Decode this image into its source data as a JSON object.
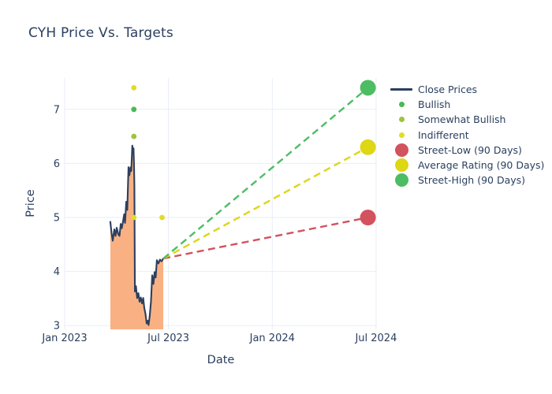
{
  "title": "CYH Price Vs. Targets",
  "colors": {
    "title_text": "#2a3f5f",
    "axis_text": "#2a3f5f",
    "grid": "#e8edf5",
    "background": "#ffffff",
    "close_line": "#2c3f5e",
    "area_fill": "#f9b183",
    "bullish": "#4bb857",
    "somewhat_bullish": "#9ec43a",
    "indifferent": "#e1dc26",
    "street_low": "#d2525e",
    "average_rating": "#ddd714",
    "street_high": "#4dbd63"
  },
  "chart_data": {
    "type": "line",
    "title": "CYH Price Vs. Targets",
    "xlabel": "Date",
    "ylabel": "Price",
    "x_tick_labels": [
      "Jan 2023",
      "Jul 2023",
      "Jan 2024",
      "Jul 2024"
    ],
    "x_tick_months": [
      0,
      6,
      12,
      18
    ],
    "y_ticks": [
      3,
      4,
      5,
      6,
      7
    ],
    "x_range_months": [
      0,
      18.05
    ],
    "y_range": [
      2.93,
      7.58
    ],
    "grid": true,
    "legend_position": "right",
    "series": [
      {
        "name": "Close Prices",
        "type": "line",
        "color": "#2c3f5e",
        "fill_color": "#f9b183",
        "x": [
          2.64,
          2.71,
          2.78,
          2.87,
          2.94,
          3.01,
          3.1,
          3.17,
          3.24,
          3.3,
          3.37,
          3.44,
          3.49,
          3.56,
          3.62,
          3.69,
          3.74,
          3.81,
          3.85,
          3.91,
          3.95,
          3.98,
          4.01,
          4.03,
          4.06,
          4.12,
          4.19,
          4.26,
          4.33,
          4.4,
          4.47,
          4.54,
          4.6,
          4.67,
          4.74,
          4.81,
          4.85,
          4.92,
          4.99,
          5.06,
          5.13,
          5.2,
          5.26,
          5.33,
          5.42,
          5.51,
          5.6,
          5.7
        ],
        "y": [
          4.92,
          4.71,
          4.57,
          4.78,
          4.66,
          4.81,
          4.69,
          4.66,
          4.88,
          4.8,
          4.92,
          5.06,
          4.9,
          5.29,
          5.14,
          5.93,
          5.78,
          5.93,
          5.86,
          6.33,
          6.21,
          6.28,
          5.96,
          5.59,
          3.63,
          3.73,
          3.51,
          3.6,
          3.44,
          3.52,
          3.41,
          3.51,
          3.33,
          3.22,
          3.04,
          3.09,
          3.01,
          3.19,
          3.45,
          3.93,
          3.77,
          3.99,
          3.89,
          4.21,
          4.15,
          4.22,
          4.19,
          4.24
        ]
      },
      {
        "name": "Bullish",
        "type": "scatter",
        "color": "#4bb857",
        "points": [
          {
            "x": 4.0,
            "y": 7.0
          }
        ]
      },
      {
        "name": "Somewhat Bullish",
        "type": "scatter",
        "color": "#9ec43a",
        "points": [
          {
            "x": 4.0,
            "y": 6.5
          }
        ]
      },
      {
        "name": "Indifferent",
        "type": "scatter",
        "color": "#e1dc26",
        "points": [
          {
            "x": 4.0,
            "y": 7.4
          },
          {
            "x": 4.0,
            "y": 5.0
          },
          {
            "x": 5.63,
            "y": 5.0
          }
        ]
      },
      {
        "name": "Street-Low (90 Days)",
        "type": "dashed_target",
        "color": "#d2525e",
        "from": {
          "x": 5.7,
          "y": 4.24
        },
        "to": {
          "x": 17.53,
          "y": 5.0
        }
      },
      {
        "name": "Average Rating (90 Days)",
        "type": "dashed_target",
        "color": "#ddd714",
        "from": {
          "x": 5.7,
          "y": 4.24
        },
        "to": {
          "x": 17.53,
          "y": 6.3
        }
      },
      {
        "name": "Street-High (90 Days)",
        "type": "dashed_target",
        "color": "#4dbd63",
        "from": {
          "x": 5.7,
          "y": 4.24
        },
        "to": {
          "x": 17.53,
          "y": 7.4
        }
      }
    ]
  },
  "legend": {
    "items": [
      {
        "label": "Close Prices",
        "marker": "line",
        "color": "#2c3f5e"
      },
      {
        "label": "Bullish",
        "marker": "dot-sm",
        "color": "#4bb857"
      },
      {
        "label": "Somewhat Bullish",
        "marker": "dot-sm",
        "color": "#9ec43a"
      },
      {
        "label": "Indifferent",
        "marker": "dot-sm",
        "color": "#e1dc26"
      },
      {
        "label": "Street-Low (90 Days)",
        "marker": "dot-lg",
        "color": "#d2525e"
      },
      {
        "label": "Average Rating (90 Days)",
        "marker": "dot-lg",
        "color": "#ddd714"
      },
      {
        "label": "Street-High (90 Days)",
        "marker": "dot-lg",
        "color": "#4dbd63"
      }
    ]
  }
}
